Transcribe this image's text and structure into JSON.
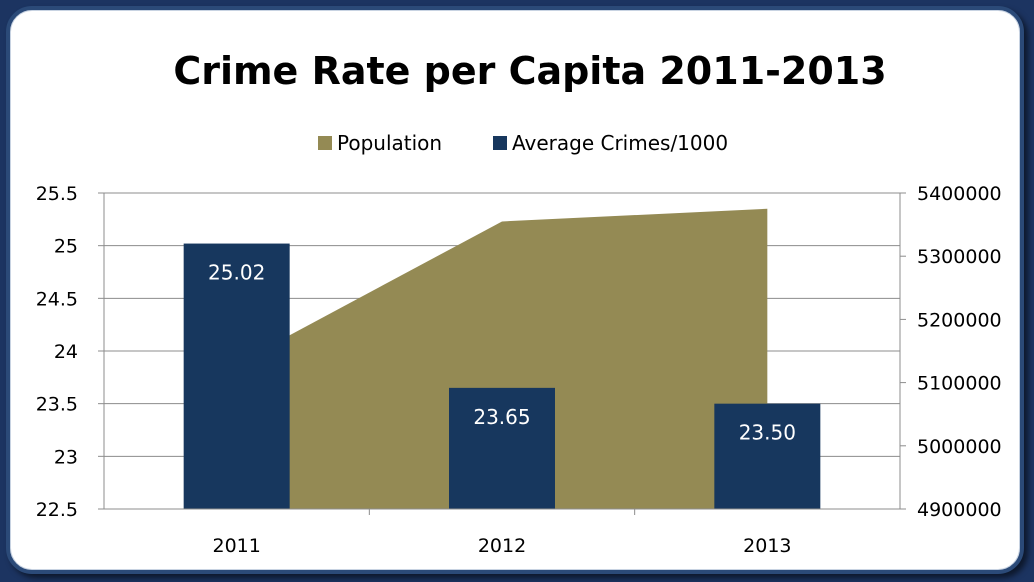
{
  "chart_data": {
    "type": "bar",
    "title": "Crime Rate per Capita 2011-2013",
    "categories": [
      "2011",
      "2012",
      "2013"
    ],
    "series": [
      {
        "name": "Population",
        "render": "area",
        "axis": "right",
        "color": "#948a54",
        "values": [
          5130000,
          5355000,
          5375000
        ]
      },
      {
        "name": "Average Crimes/1000",
        "render": "bar",
        "axis": "left",
        "color": "#17375e",
        "values": [
          25.02,
          23.65,
          23.5
        ],
        "data_labels": [
          "25.02",
          "23.65",
          "23.50"
        ]
      }
    ],
    "y_left": {
      "ylim": [
        22.5,
        25.5
      ],
      "ticks": [
        "22.5",
        "23",
        "23.5",
        "24",
        "24.5",
        "25",
        "25.5"
      ]
    },
    "y_right": {
      "ylim": [
        4900000,
        5400000
      ],
      "ticks": [
        "4900000",
        "5000000",
        "5100000",
        "5200000",
        "5300000",
        "5400000"
      ]
    },
    "grid": true,
    "legend_position": "top"
  }
}
